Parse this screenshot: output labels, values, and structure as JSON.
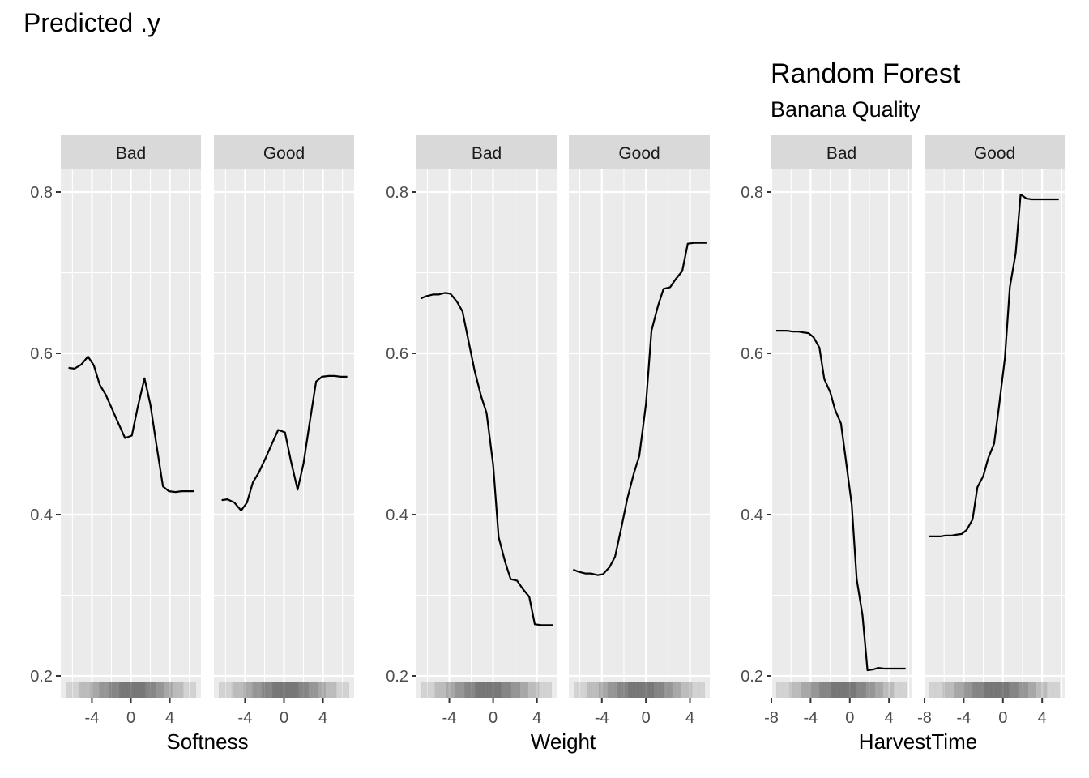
{
  "page_title": "Predicted .y",
  "plot_title": "Random Forest",
  "plot_subtitle": "Banana Quality",
  "chart_data": [
    {
      "type": "line",
      "xlabel": "Softness",
      "ylabel": "",
      "ylim": [
        0.2,
        0.8
      ],
      "yticks": [
        0.2,
        0.4,
        0.6,
        0.8
      ],
      "xlim": [
        -7.2,
        7.2
      ],
      "xticks": [
        -4,
        0,
        4
      ],
      "grid": true,
      "facets": [
        {
          "strip": "Bad",
          "x": [
            -6.4,
            -5.8,
            -5.1,
            -4.4,
            -3.8,
            -3.2,
            -2.6,
            -1.9,
            -1.2,
            -0.6,
            0.1,
            0.7,
            1.4,
            2.0,
            2.6,
            3.3,
            3.9,
            4.6,
            5.2,
            5.8,
            6.5
          ],
          "y": [
            0.582,
            0.581,
            0.586,
            0.596,
            0.585,
            0.561,
            0.549,
            0.53,
            0.511,
            0.495,
            0.498,
            0.533,
            0.569,
            0.537,
            0.489,
            0.435,
            0.429,
            0.428,
            0.429,
            0.429,
            0.429
          ]
        },
        {
          "strip": "Good",
          "x": [
            -6.4,
            -5.8,
            -5.1,
            -4.4,
            -3.8,
            -3.2,
            -2.6,
            -1.9,
            -1.2,
            -0.6,
            0.1,
            0.7,
            1.4,
            2.0,
            2.6,
            3.3,
            3.9,
            4.6,
            5.2,
            5.8,
            6.5
          ],
          "y": [
            0.418,
            0.419,
            0.415,
            0.405,
            0.415,
            0.44,
            0.452,
            0.47,
            0.489,
            0.505,
            0.502,
            0.467,
            0.431,
            0.463,
            0.511,
            0.565,
            0.571,
            0.572,
            0.572,
            0.571,
            0.571
          ]
        }
      ]
    },
    {
      "type": "line",
      "xlabel": "Weight",
      "ylabel": "",
      "ylim": [
        0.2,
        0.8
      ],
      "yticks": [
        0.2,
        0.4,
        0.6,
        0.8
      ],
      "xlim": [
        -7.0,
        5.8
      ],
      "xticks": [
        -4,
        0,
        4
      ],
      "grid": true,
      "facets": [
        {
          "strip": "Bad",
          "x": [
            -6.6,
            -6.1,
            -5.5,
            -5.0,
            -4.4,
            -3.9,
            -3.3,
            -2.8,
            -2.2,
            -1.7,
            -1.1,
            -0.6,
            0.0,
            0.5,
            1.1,
            1.6,
            2.2,
            2.7,
            3.3,
            3.8,
            4.4,
            4.9,
            5.5
          ],
          "y": [
            0.668,
            0.671,
            0.673,
            0.673,
            0.675,
            0.674,
            0.664,
            0.652,
            0.612,
            0.579,
            0.547,
            0.526,
            0.462,
            0.372,
            0.341,
            0.32,
            0.318,
            0.308,
            0.298,
            0.264,
            0.263,
            0.263,
            0.263
          ]
        },
        {
          "strip": "Good",
          "x": [
            -6.6,
            -6.1,
            -5.5,
            -5.0,
            -4.4,
            -3.9,
            -3.3,
            -2.8,
            -2.2,
            -1.7,
            -1.1,
            -0.6,
            0.0,
            0.5,
            1.1,
            1.6,
            2.2,
            2.7,
            3.3,
            3.8,
            4.4,
            4.9,
            5.5
          ],
          "y": [
            0.332,
            0.329,
            0.327,
            0.327,
            0.325,
            0.326,
            0.335,
            0.348,
            0.386,
            0.419,
            0.451,
            0.473,
            0.537,
            0.628,
            0.659,
            0.68,
            0.682,
            0.692,
            0.702,
            0.736,
            0.737,
            0.737,
            0.737
          ]
        }
      ]
    },
    {
      "type": "line",
      "xlabel": "HarvestTime",
      "ylabel": "",
      "ylim": [
        0.2,
        0.8
      ],
      "yticks": [
        0.2,
        0.4,
        0.6,
        0.8
      ],
      "xlim": [
        -8.0,
        6.3
      ],
      "xticks": [
        -8,
        -4,
        0,
        4
      ],
      "grid": true,
      "facets": [
        {
          "strip": "Bad",
          "x": [
            -7.5,
            -7.0,
            -6.4,
            -5.9,
            -5.3,
            -4.8,
            -4.2,
            -3.7,
            -3.1,
            -2.6,
            -2.0,
            -1.5,
            -0.9,
            -0.4,
            0.2,
            0.7,
            1.3,
            1.8,
            2.4,
            2.9,
            3.5,
            4.0,
            4.6,
            5.1,
            5.7
          ],
          "y": [
            0.628,
            0.628,
            0.628,
            0.627,
            0.627,
            0.626,
            0.625,
            0.62,
            0.607,
            0.568,
            0.552,
            0.53,
            0.513,
            0.468,
            0.412,
            0.32,
            0.275,
            0.207,
            0.208,
            0.21,
            0.209,
            0.209,
            0.209,
            0.209,
            0.209
          ]
        },
        {
          "strip": "Good",
          "x": [
            -7.5,
            -7.0,
            -6.4,
            -5.9,
            -5.3,
            -4.8,
            -4.2,
            -3.7,
            -3.1,
            -2.6,
            -2.0,
            -1.5,
            -0.9,
            -0.4,
            0.2,
            0.7,
            1.3,
            1.8,
            2.4,
            2.9,
            3.5,
            4.0,
            4.6,
            5.1,
            5.7
          ],
          "y": [
            0.373,
            0.373,
            0.373,
            0.374,
            0.374,
            0.375,
            0.376,
            0.381,
            0.394,
            0.434,
            0.448,
            0.47,
            0.488,
            0.534,
            0.594,
            0.682,
            0.724,
            0.797,
            0.792,
            0.791,
            0.791,
            0.791,
            0.791,
            0.791,
            0.791
          ]
        }
      ]
    }
  ]
}
